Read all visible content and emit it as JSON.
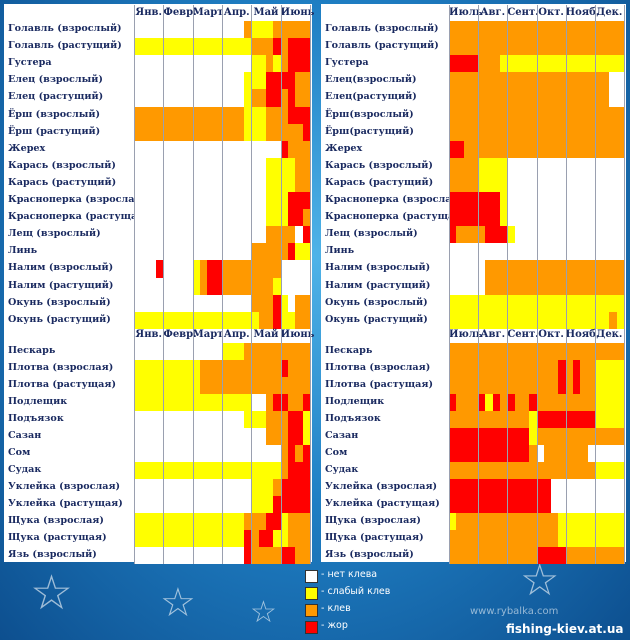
{
  "colors": {
    "none": "#ffffff",
    "weak": "#ffff00",
    "bite": "#ff9900",
    "strong": "#ff0000"
  },
  "tables": [
    {
      "id": "left-top",
      "months": [
        "Янв.",
        "Февр.",
        "Март",
        "Апр.",
        "Май",
        "Июнь"
      ],
      "rows": [
        {
          "name": "Голавль (взрослый)",
          "cells": "000000000000000211122222"
        },
        {
          "name": "Голавль (растущий)",
          "cells": "111111111111111122232333"
        },
        {
          "name": "Густера",
          "cells": "000000000000000011212333"
        },
        {
          "name": "Елец (взрослый)",
          "cells": "000000000000000111333322"
        },
        {
          "name": "Елец (растущий)",
          "cells": "000000000000000122332322"
        },
        {
          "name": "Ёрш (взрослый)",
          "cells": "222222222222222111222333"
        },
        {
          "name": "Ёрш (растущий)",
          "cells": "222222222222222111222223"
        },
        {
          "name": "Жерех",
          "cells": "000000000000000000003222"
        },
        {
          "name": "Карась (взрослый)",
          "cells": "000000000000000000111122"
        },
        {
          "name": "Карась (растущий)",
          "cells": "000000000000000000111122"
        },
        {
          "name": "Красноперка (взрослая)",
          "cells": "000000000000000000111333"
        },
        {
          "name": "Красноперка (растущая)",
          "cells": "000000000000000000111332"
        },
        {
          "name": "Лещ (взрослый)",
          "cells": "000000000000000000222203"
        },
        {
          "name": "Линь",
          "cells": "000000000000000022222311"
        },
        {
          "name": "Налим (взрослый)",
          "cells": "000300001233222222220000"
        },
        {
          "name": "Налим (растущий)",
          "cells": "000000001233222222210000"
        },
        {
          "name": "Окунь (взрослый)",
          "cells": "000000000000000022231022"
        },
        {
          "name": "Окунь (растущий)",
          "cells": "111111111111111112231122"
        }
      ]
    },
    {
      "id": "right-top",
      "months": [
        "Июль",
        "Авг.",
        "Сент.",
        "Окт.",
        "Нояб.",
        "Дек."
      ],
      "rows": [
        {
          "name": "Голавль (взрослый)",
          "cells": "222222222222222222222222"
        },
        {
          "name": "Голавль (растущий)",
          "cells": "222222222222222222222222"
        },
        {
          "name": "Густера",
          "cells": "333322211111111111111111"
        },
        {
          "name": "Елец(взрослый)",
          "cells": "222222222222222222222200"
        },
        {
          "name": "Елец(растущий)",
          "cells": "222222222222222222222200"
        },
        {
          "name": "Ёрш(взрослый)",
          "cells": "222222222222222222222222"
        },
        {
          "name": "Ёрш(растущий)",
          "cells": "222222222222222222222222"
        },
        {
          "name": "Жерех",
          "cells": "332222222222222222222222"
        },
        {
          "name": "Карась (взрослый)",
          "cells": "222211110000000000000000"
        },
        {
          "name": "Карась (растущий)",
          "cells": "222211110000000000000000"
        },
        {
          "name": "Красноперка (взрослая)",
          "cells": "333333310000000000000000"
        },
        {
          "name": "Красноперка (растущая)",
          "cells": "333333310000000000000000"
        },
        {
          "name": "Лещ (взрослый)",
          "cells": "322223331000000000000000"
        },
        {
          "name": "Линь",
          "cells": "000000000000000000000000"
        },
        {
          "name": "Налим (взрослый)",
          "cells": "000002222222222222222222"
        },
        {
          "name": "Налим (растущий)",
          "cells": "000002222222222222222222"
        },
        {
          "name": "Окунь (взрослый)",
          "cells": "111111111111111111111111"
        },
        {
          "name": "Окунь (растущий)",
          "cells": "111111111111111111111121"
        }
      ]
    },
    {
      "id": "left-bottom",
      "months": [
        "Янв.",
        "Февр.",
        "Март",
        "Апр.",
        "Май",
        "Июнь"
      ],
      "rows": [
        {
          "name": "Пескарь",
          "cells": "000000000000111222222222"
        },
        {
          "name": "Плотва (взрослая)",
          "cells": "111111111222222222223222"
        },
        {
          "name": "Плотва (растущая)",
          "cells": "111111111222222222222222"
        },
        {
          "name": "Подлещик",
          "cells": "111111111111111100233223"
        },
        {
          "name": "Подъязок",
          "cells": "000000000000000111222331"
        },
        {
          "name": "Сазан",
          "cells": "000000000000000000222331"
        },
        {
          "name": "Сом",
          "cells": "000000000000000000002323"
        },
        {
          "name": "Судак",
          "cells": "111111111111111111112333"
        },
        {
          "name": "Уклейка (взрослая)",
          "cells": "000000000000000011123333"
        },
        {
          "name": "Уклейка (растущая)",
          "cells": "000000000000000011133333"
        },
        {
          "name": "Щука (взрослая)",
          "cells": "111111111111111222331222"
        },
        {
          "name": "Щука (растущая)",
          "cells": "111111111111111323311222"
        },
        {
          "name": "Язь (взрослый)",
          "cells": "000000000000000322223322"
        }
      ]
    },
    {
      "id": "right-bottom",
      "months": [
        "Июль",
        "Авг.",
        "Сент.",
        "Окт.",
        "Нояб.",
        "Дек."
      ],
      "rows": [
        {
          "name": "Пескарь",
          "cells": "222222222222222222222222"
        },
        {
          "name": "Плотва (взрослая)",
          "cells": "222222222222222323221111"
        },
        {
          "name": "Плотва (растущая)",
          "cells": "222222222222222323221111"
        },
        {
          "name": "Подлещик",
          "cells": "322231323223222222221111"
        },
        {
          "name": "Подъязок",
          "cells": "222222222221333333331111"
        },
        {
          "name": "Сазан",
          "cells": "333333333331222222222222"
        },
        {
          "name": "Сом",
          "cells": "333333333332022222200000"
        },
        {
          "name": "Судак",
          "cells": "222222222222222222221111"
        },
        {
          "name": "Уклейка (взрослая)",
          "cells": "333333333333330000000000"
        },
        {
          "name": "Уклейка (растущая)",
          "cells": "333333333333330000000000"
        },
        {
          "name": "Щука (взрослая)",
          "cells": "122222222222222111111111"
        },
        {
          "name": "Щука (растущая)",
          "cells": "222222222222222111111111"
        },
        {
          "name": "Язь (взрослый)",
          "cells": "222222222222333322222222"
        }
      ]
    }
  ],
  "legend": [
    {
      "key": "none",
      "label": "- нет клева"
    },
    {
      "key": "weak",
      "label": "- слабый клев"
    },
    {
      "key": "bite",
      "label": "- клев"
    },
    {
      "key": "strong",
      "label": "- жор"
    }
  ],
  "watermarks": [
    "www.rybalka.com",
    "fishing-kiev.at.ua"
  ],
  "chart_data": {
    "type": "heatmap",
    "title": "",
    "xlabel": "",
    "ylabel": "",
    "categories": [
      "Янв.",
      "Февр.",
      "Март",
      "Апр.",
      "Май",
      "Июнь",
      "Июль",
      "Авг.",
      "Сент.",
      "Окт.",
      "Нояб.",
      "Дек."
    ],
    "scale": {
      "0": "нет клева",
      "1": "слабый клев",
      "2": "клев",
      "3": "жор"
    },
    "note": "Each month split into 4 weekly cells; values encoded in tables[].rows[].cells"
  }
}
